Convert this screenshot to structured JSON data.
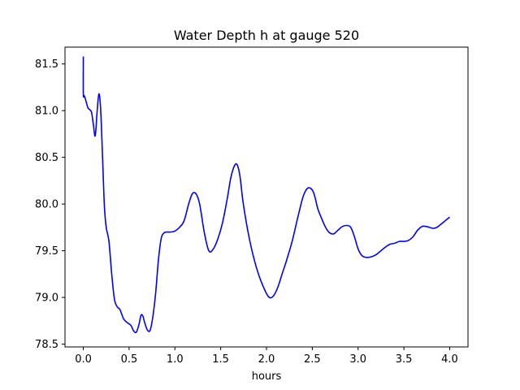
{
  "chart_data": {
    "type": "line",
    "title": "Water Depth h at gauge 520",
    "xlabel": "hours",
    "ylabel": "",
    "xlim": [
      -0.2,
      4.2
    ],
    "ylim": [
      78.47,
      81.68
    ],
    "xticks": [
      0.0,
      0.5,
      1.0,
      1.5,
      2.0,
      2.5,
      3.0,
      3.5,
      4.0
    ],
    "xtick_labels": [
      "0.0",
      "0.5",
      "1.0",
      "1.5",
      "2.0",
      "2.5",
      "3.0",
      "3.5",
      "4.0"
    ],
    "yticks": [
      78.5,
      79.0,
      79.5,
      80.0,
      80.5,
      81.0,
      81.5
    ],
    "ytick_labels": [
      "78.5",
      "79.0",
      "79.5",
      "80.0",
      "80.5",
      "81.0",
      "81.5"
    ],
    "grid": false,
    "series": [
      {
        "color": "#0000ff",
        "x": [
          0.0,
          0.0,
          0.01,
          0.03,
          0.05,
          0.07,
          0.09,
          0.11,
          0.13,
          0.15,
          0.17,
          0.19,
          0.21,
          0.23,
          0.25,
          0.28,
          0.31,
          0.34,
          0.37,
          0.4,
          0.44,
          0.48,
          0.52,
          0.55,
          0.58,
          0.61,
          0.63,
          0.65,
          0.67,
          0.7,
          0.73,
          0.76,
          0.79,
          0.82,
          0.85,
          0.88,
          0.91,
          0.95,
          1.0,
          1.05,
          1.1,
          1.15,
          1.19,
          1.23,
          1.27,
          1.32,
          1.37,
          1.42,
          1.47,
          1.52,
          1.57,
          1.61,
          1.65,
          1.68,
          1.71,
          1.74,
          1.78,
          1.83,
          1.89,
          1.95,
          2.02,
          2.07,
          2.12,
          2.17,
          2.22,
          2.28,
          2.34,
          2.4,
          2.45,
          2.5,
          2.53,
          2.56,
          2.6,
          2.64,
          2.68,
          2.73,
          2.78,
          2.83,
          2.88,
          2.92,
          2.96,
          3.0,
          3.04,
          3.08,
          3.12,
          3.16,
          3.2,
          3.25,
          3.3,
          3.35,
          3.4,
          3.45,
          3.5,
          3.55,
          3.6,
          3.65,
          3.7,
          3.74,
          3.78,
          3.82,
          3.86,
          3.9,
          3.95,
          4.0
        ],
        "y": [
          81.58,
          81.18,
          81.16,
          81.1,
          81.03,
          81.01,
          80.98,
          80.85,
          80.73,
          80.98,
          81.18,
          81.0,
          80.5,
          79.98,
          79.75,
          79.6,
          79.25,
          78.98,
          78.9,
          78.87,
          78.77,
          78.73,
          78.7,
          78.64,
          78.63,
          78.72,
          78.81,
          78.8,
          78.73,
          78.65,
          78.65,
          78.8,
          79.05,
          79.4,
          79.63,
          79.69,
          79.7,
          79.7,
          79.71,
          79.75,
          79.82,
          80.0,
          80.11,
          80.11,
          80.0,
          79.7,
          79.5,
          79.52,
          79.63,
          79.8,
          80.05,
          80.28,
          80.41,
          80.42,
          80.3,
          80.05,
          79.8,
          79.55,
          79.32,
          79.15,
          79.01,
          79.01,
          79.1,
          79.25,
          79.4,
          79.6,
          79.85,
          80.08,
          80.17,
          80.15,
          80.07,
          79.95,
          79.85,
          79.76,
          79.7,
          79.68,
          79.72,
          79.76,
          79.77,
          79.75,
          79.65,
          79.52,
          79.45,
          79.43,
          79.43,
          79.44,
          79.46,
          79.5,
          79.54,
          79.57,
          79.58,
          79.6,
          79.6,
          79.61,
          79.65,
          79.72,
          79.76,
          79.76,
          79.75,
          79.74,
          79.75,
          79.78,
          79.82,
          79.86
        ]
      }
    ]
  }
}
